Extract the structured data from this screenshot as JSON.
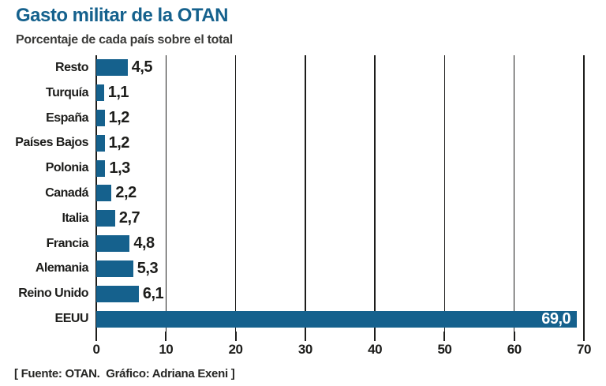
{
  "header": {
    "title": "Gasto militar de la OTAN",
    "subtitle": "Porcentaje de cada país sobre el total"
  },
  "chart_data": {
    "type": "bar",
    "orientation": "horizontal",
    "title": "Gasto militar de la OTAN",
    "subtitle": "Porcentaje de cada país sobre el total",
    "categories": [
      "Resto",
      "Turquía",
      "España",
      "Países Bajos",
      "Polonia",
      "Canadá",
      "Italia",
      "Francia",
      "Alemania",
      "Reino Unido",
      "EEUU"
    ],
    "values": [
      4.5,
      1.1,
      1.2,
      1.2,
      1.3,
      2.2,
      2.7,
      4.8,
      5.3,
      6.1,
      69.0
    ],
    "value_labels": [
      "4,5",
      "1,1",
      "1,2",
      "1,2",
      "1,3",
      "2,2",
      "2,7",
      "4,8",
      "5,3",
      "6,1",
      "69,0"
    ],
    "xlabel": "",
    "ylabel": "",
    "xlim": [
      0,
      70
    ],
    "x_ticks": [
      0,
      10,
      20,
      30,
      40,
      50,
      60,
      70
    ],
    "grid": true,
    "legend": false,
    "bar_color": "#15618D"
  },
  "footer": {
    "source": "[ Fuente: OTAN.  Gráfico: Adriana Exeni ]"
  },
  "colors": {
    "accent": "#15618D",
    "text": "#1d1d1b",
    "subtitle_text": "#3c3c3a",
    "background": "#ffffff"
  }
}
